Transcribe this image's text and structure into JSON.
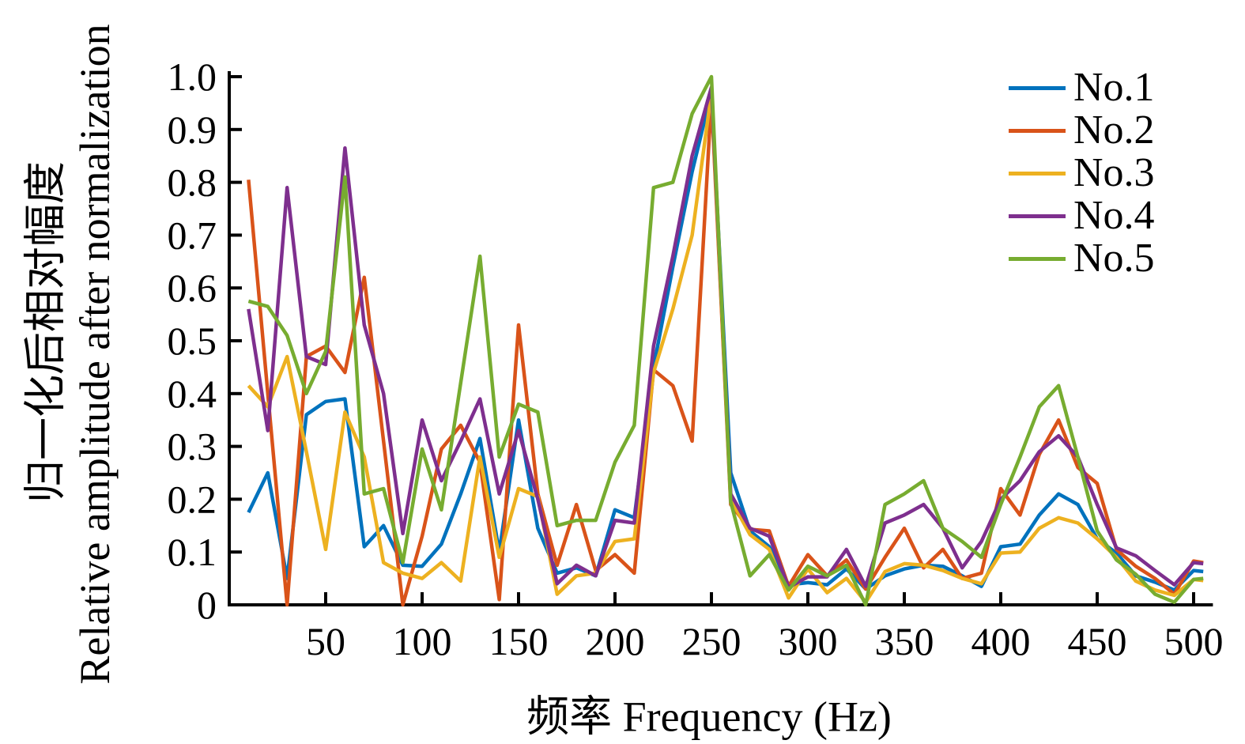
{
  "figure": {
    "x_axis_label": "频率 Frequency (Hz)",
    "y_axis_label_zh": "归一化后相对幅度",
    "y_axis_label_en": "Relative amplitude after normalization",
    "background_color": "#ffffff",
    "axis_color": "#000000"
  },
  "chart_data": {
    "type": "line",
    "title": "",
    "xlabel": "频率 Frequency (Hz)",
    "ylabel": "归一化后相对幅度 Relative amplitude after normalization",
    "xlim": [
      0,
      508
    ],
    "ylim": [
      0,
      1.0
    ],
    "grid": false,
    "legend_position": "top-right",
    "x_ticks": [
      50,
      100,
      150,
      200,
      250,
      300,
      350,
      400,
      450,
      500
    ],
    "y_ticks": [
      0,
      0.1,
      0.2,
      0.3,
      0.4,
      0.5,
      0.6,
      0.7,
      0.8,
      0.9,
      1.0
    ],
    "y_tick_labels": [
      "0",
      "0.1",
      "0.2",
      "0.3",
      "0.4",
      "0.5",
      "0.6",
      "0.7",
      "0.8",
      "0.9",
      "1.0"
    ],
    "x": [
      10,
      20,
      30,
      40,
      50,
      60,
      70,
      80,
      90,
      100,
      110,
      120,
      130,
      140,
      150,
      160,
      170,
      180,
      190,
      200,
      210,
      220,
      230,
      240,
      250,
      260,
      270,
      280,
      290,
      300,
      310,
      320,
      330,
      340,
      350,
      360,
      370,
      380,
      390,
      400,
      410,
      420,
      430,
      440,
      450,
      460,
      470,
      480,
      490,
      500,
      505
    ],
    "series": [
      {
        "name": "No.1",
        "color": "#0072BD",
        "values": [
          0.175,
          0.25,
          0.05,
          0.36,
          0.385,
          0.39,
          0.11,
          0.15,
          0.075,
          0.073,
          0.115,
          0.21,
          0.315,
          0.1,
          0.35,
          0.145,
          0.06,
          0.07,
          0.055,
          0.18,
          0.165,
          0.45,
          0.64,
          0.82,
          0.97,
          0.25,
          0.14,
          0.11,
          0.038,
          0.042,
          0.038,
          0.068,
          0.03,
          0.055,
          0.068,
          0.075,
          0.073,
          0.055,
          0.035,
          0.11,
          0.115,
          0.17,
          0.21,
          0.19,
          0.125,
          0.098,
          0.055,
          0.043,
          0.028,
          0.065,
          0.063
        ]
      },
      {
        "name": "No.2",
        "color": "#D95319",
        "values": [
          0.805,
          0.4,
          0.0,
          0.47,
          0.49,
          0.44,
          0.62,
          0.31,
          0.0,
          0.13,
          0.295,
          0.34,
          0.27,
          0.01,
          0.53,
          0.21,
          0.075,
          0.19,
          0.065,
          0.095,
          0.06,
          0.445,
          0.415,
          0.31,
          0.96,
          0.19,
          0.143,
          0.14,
          0.035,
          0.095,
          0.055,
          0.085,
          0.03,
          0.09,
          0.145,
          0.07,
          0.105,
          0.05,
          0.06,
          0.22,
          0.17,
          0.285,
          0.35,
          0.26,
          0.23,
          0.105,
          0.073,
          0.05,
          0.02,
          0.083,
          0.08
        ]
      },
      {
        "name": "No.3",
        "color": "#EDB120",
        "values": [
          0.415,
          0.375,
          0.47,
          0.29,
          0.105,
          0.365,
          0.28,
          0.08,
          0.06,
          0.05,
          0.08,
          0.045,
          0.28,
          0.09,
          0.22,
          0.205,
          0.02,
          0.055,
          0.06,
          0.12,
          0.125,
          0.44,
          0.56,
          0.7,
          0.97,
          0.2,
          0.133,
          0.105,
          0.013,
          0.068,
          0.023,
          0.05,
          0.005,
          0.063,
          0.078,
          0.075,
          0.065,
          0.05,
          0.04,
          0.098,
          0.1,
          0.145,
          0.165,
          0.155,
          0.125,
          0.09,
          0.045,
          0.028,
          0.018,
          0.048,
          0.046
        ]
      },
      {
        "name": "No.4",
        "color": "#7E2F8E",
        "values": [
          0.56,
          0.33,
          0.79,
          0.47,
          0.455,
          0.865,
          0.53,
          0.4,
          0.135,
          0.35,
          0.235,
          0.31,
          0.39,
          0.21,
          0.33,
          0.2,
          0.04,
          0.075,
          0.055,
          0.16,
          0.155,
          0.49,
          0.66,
          0.85,
          0.98,
          0.21,
          0.145,
          0.13,
          0.033,
          0.053,
          0.053,
          0.105,
          0.035,
          0.155,
          0.17,
          0.19,
          0.145,
          0.07,
          0.12,
          0.2,
          0.235,
          0.29,
          0.32,
          0.28,
          0.19,
          0.108,
          0.093,
          0.065,
          0.038,
          0.08,
          0.078
        ]
      },
      {
        "name": "No.5",
        "color": "#77AC30",
        "values": [
          0.575,
          0.565,
          0.51,
          0.4,
          0.48,
          0.81,
          0.21,
          0.22,
          0.08,
          0.295,
          0.18,
          0.42,
          0.66,
          0.28,
          0.38,
          0.365,
          0.15,
          0.16,
          0.16,
          0.27,
          0.34,
          0.79,
          0.8,
          0.93,
          1.0,
          0.195,
          0.055,
          0.095,
          0.028,
          0.073,
          0.055,
          0.075,
          0.0,
          0.19,
          0.21,
          0.235,
          0.145,
          0.12,
          0.09,
          0.19,
          0.28,
          0.375,
          0.415,
          0.28,
          0.14,
          0.085,
          0.058,
          0.02,
          0.005,
          0.048,
          0.05
        ]
      }
    ]
  }
}
